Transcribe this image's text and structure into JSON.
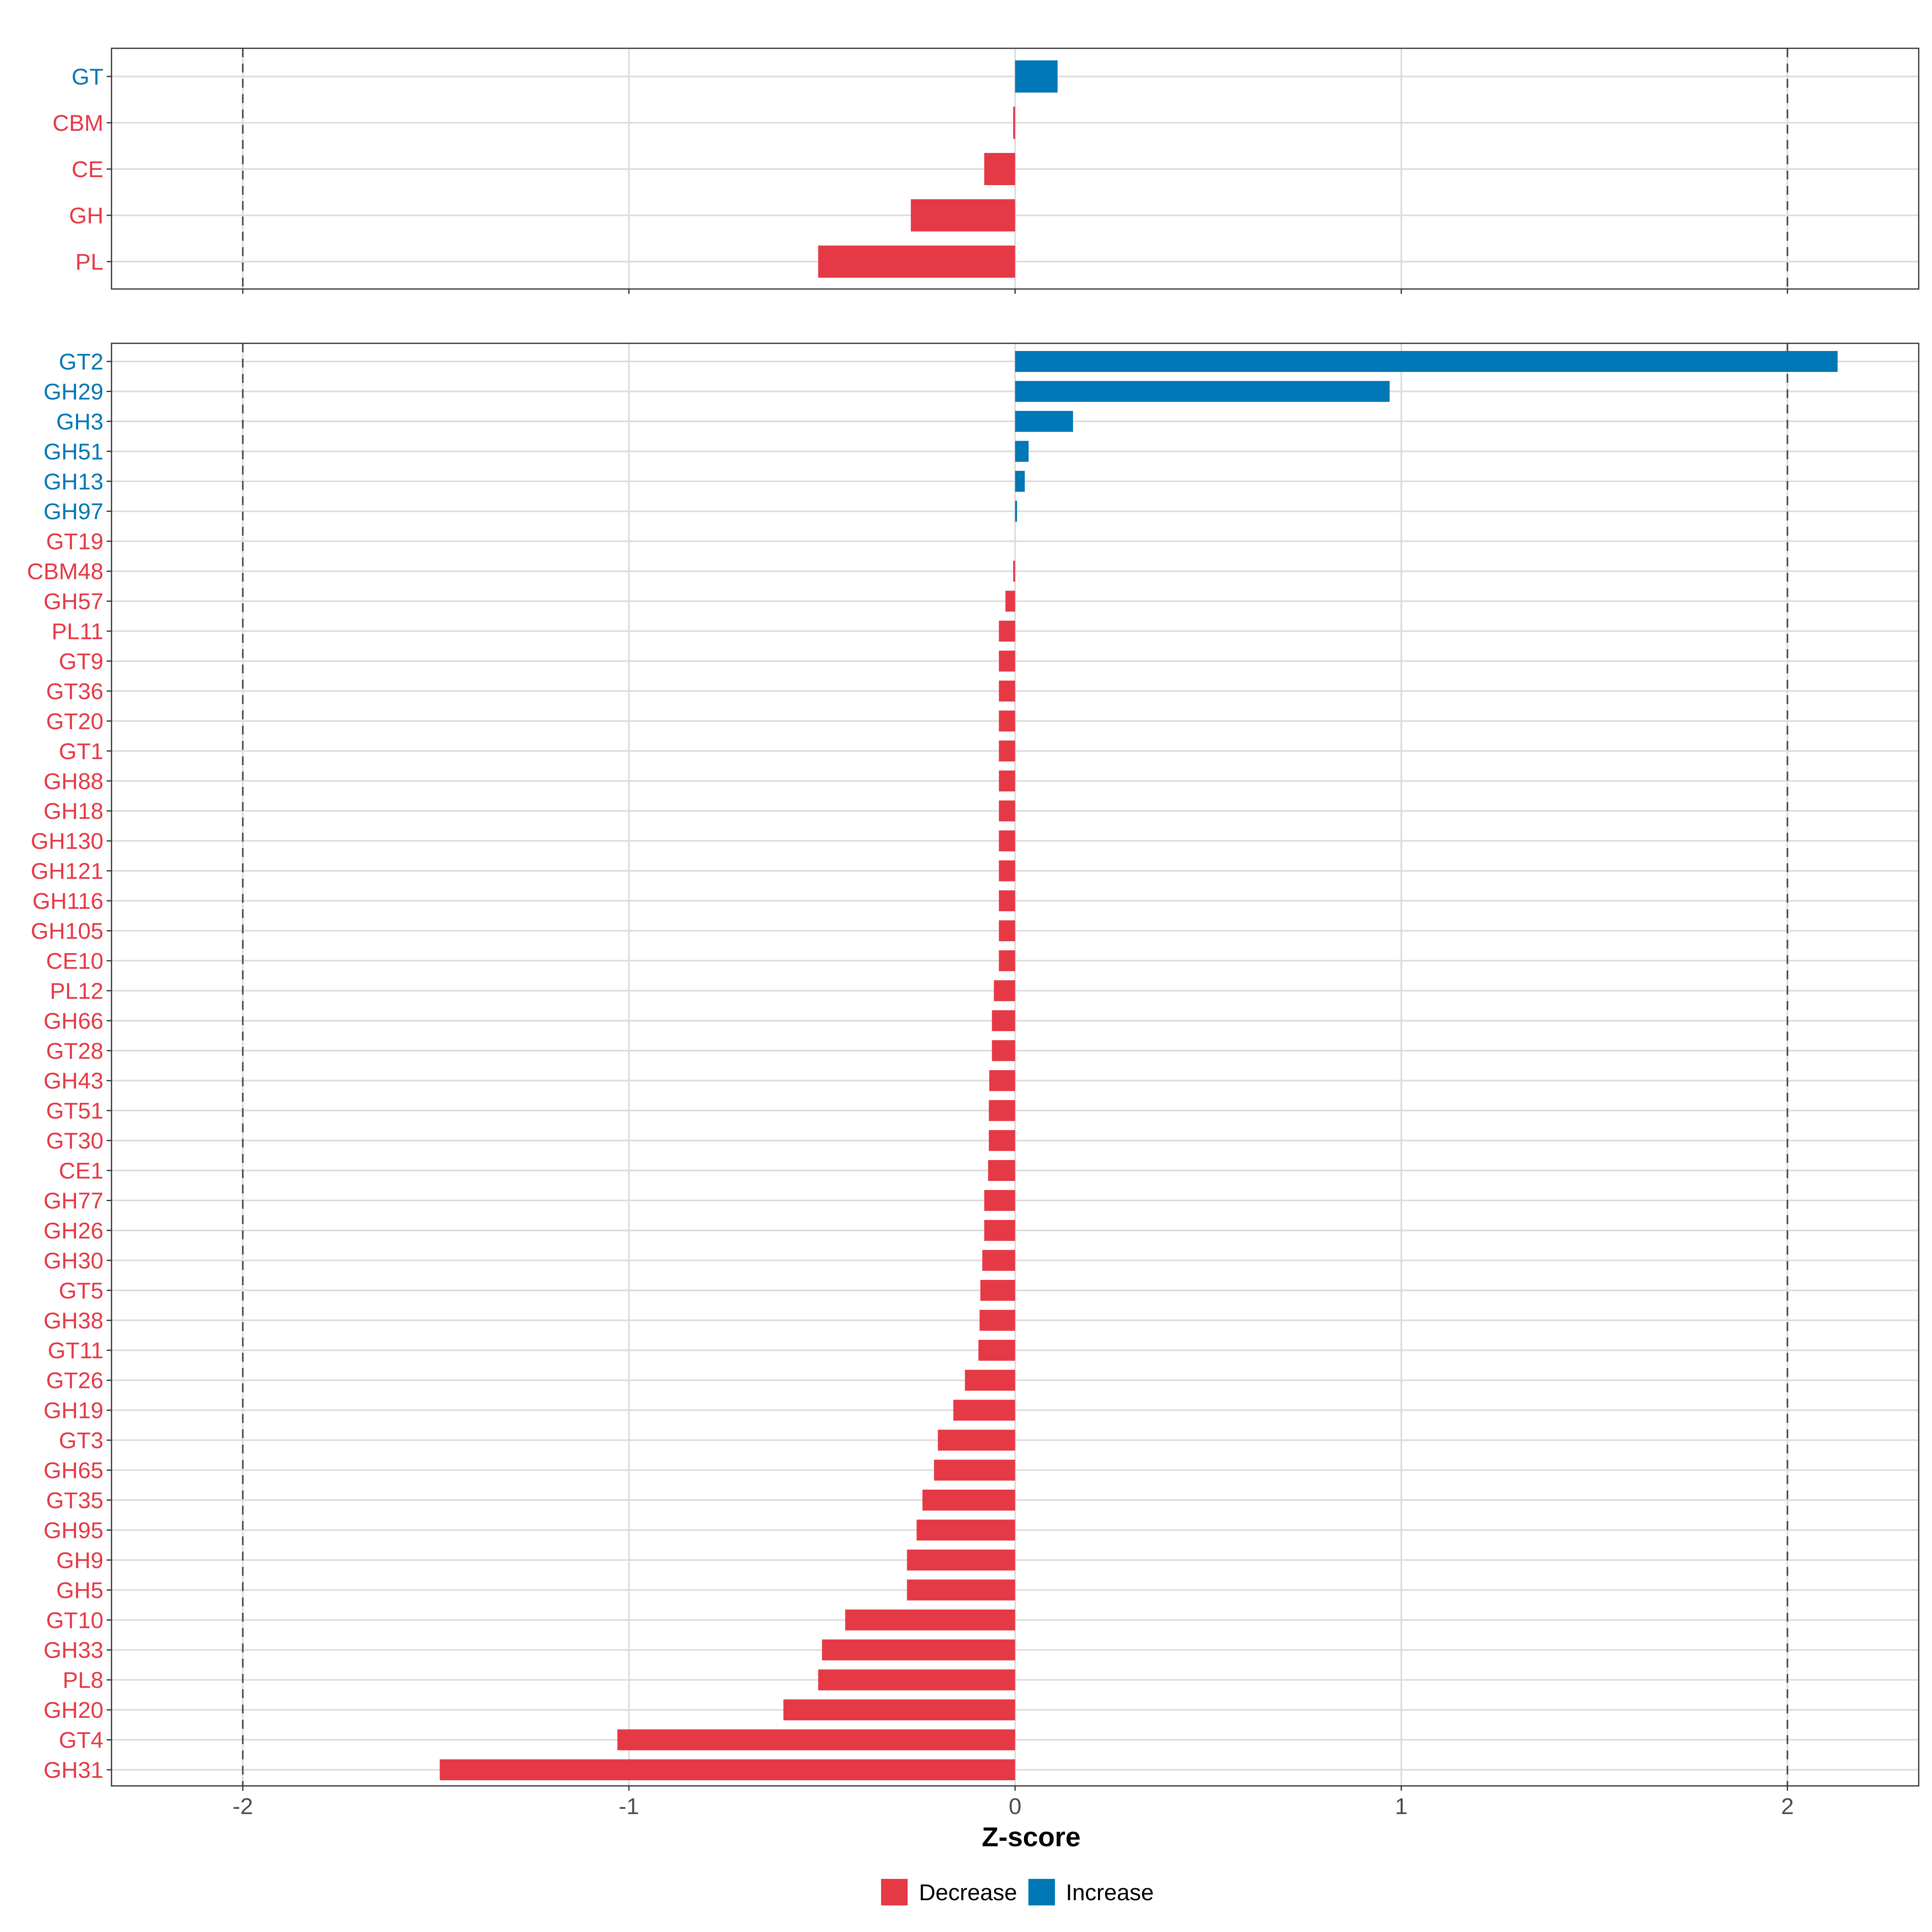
{
  "colors": {
    "decrease": "#E63946",
    "increase": "#0077B6"
  },
  "chart_data": [
    {
      "type": "bar",
      "orientation": "horizontal",
      "panel": "top",
      "categories": [
        "GT",
        "CBM",
        "CE",
        "GH",
        "PL"
      ],
      "values": [
        0.11,
        -0.005,
        -0.08,
        -0.27,
        -0.51
      ],
      "xlim": [
        -2.34,
        2.34
      ],
      "reference_lines": [
        -2,
        2
      ]
    },
    {
      "type": "bar",
      "orientation": "horizontal",
      "panel": "bottom",
      "categories": [
        "GT2",
        "GH29",
        "GH3",
        "GH51",
        "GH13",
        "GH97",
        "GT19",
        "CBM48",
        "GH57",
        "PL11",
        "GT9",
        "GT36",
        "GT20",
        "GT1",
        "GH88",
        "GH18",
        "GH130",
        "GH121",
        "GH116",
        "GH105",
        "CE10",
        "PL12",
        "GH66",
        "GT28",
        "GH43",
        "GT51",
        "GT30",
        "CE1",
        "GH77",
        "GH26",
        "GH30",
        "GT5",
        "GH38",
        "GT11",
        "GT26",
        "GH19",
        "GT3",
        "GH65",
        "GT35",
        "GH95",
        "GH9",
        "GH5",
        "GT10",
        "GH33",
        "PL8",
        "GH20",
        "GT4",
        "GH31"
      ],
      "values": [
        2.13,
        0.97,
        0.15,
        0.035,
        0.025,
        0.005,
        0.0,
        -0.005,
        -0.025,
        -0.042,
        -0.042,
        -0.042,
        -0.042,
        -0.042,
        -0.042,
        -0.042,
        -0.042,
        -0.042,
        -0.042,
        -0.042,
        -0.042,
        -0.055,
        -0.06,
        -0.06,
        -0.067,
        -0.068,
        -0.068,
        -0.07,
        -0.08,
        -0.08,
        -0.085,
        -0.09,
        -0.092,
        -0.095,
        -0.13,
        -0.16,
        -0.2,
        -0.21,
        -0.24,
        -0.255,
        -0.28,
        -0.28,
        -0.44,
        -0.5,
        -0.51,
        -0.6,
        -1.03,
        -1.49
      ],
      "xlim": [
        -2.34,
        2.34
      ],
      "reference_lines": [
        -2,
        2
      ]
    }
  ],
  "x_axis": {
    "title": "Z-score",
    "ticks": [
      -2,
      -1,
      0,
      1,
      2
    ],
    "tick_labels": [
      "-2",
      "-1",
      "0",
      "1",
      "2"
    ]
  },
  "legend": {
    "position": "bottom",
    "items": [
      {
        "label": "Decrease",
        "color_key": "decrease"
      },
      {
        "label": "Increase",
        "color_key": "increase"
      }
    ]
  }
}
